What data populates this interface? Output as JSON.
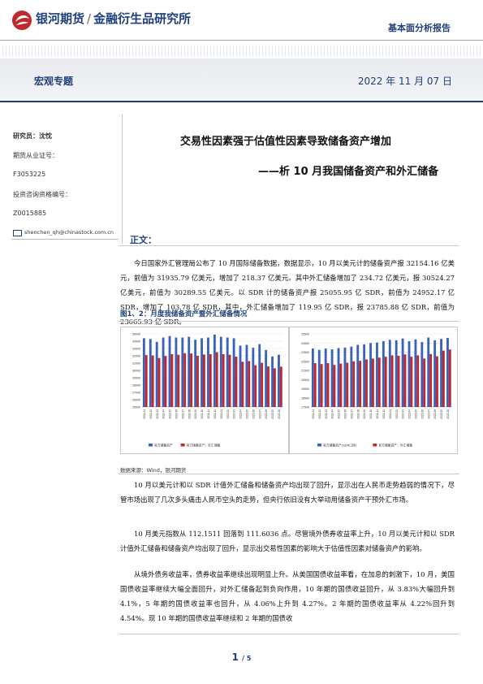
{
  "header": {
    "brand": "银河期货",
    "institute": "金融衍生品研究所",
    "report_type": "基本面分析报告",
    "colors": {
      "brand_blue": "#1f3f7a",
      "brand_red": "#c0282d"
    }
  },
  "band": {
    "category": "宏观专题",
    "date": "2022 年 11 月 07 日"
  },
  "sidebar": {
    "researcher": "研究员：沈忱",
    "license_label": "期货从业证号：",
    "license_no": "F3053225",
    "advisory_label": "投资咨询资格编号：",
    "advisory_no": "Z0015885",
    "email": "shenchen_qh@chinastock.com.cn",
    "email_icon": "mail-icon"
  },
  "title": {
    "main": "交易性因素强于估值性因素导致储备资产增加",
    "sub": "——析 10 月我国储备资产和外汇储备"
  },
  "section": {
    "heading": "正文："
  },
  "paragraphs": {
    "p1": "今日国家外汇管理局公布了 10 月国际储备数据，数据显示，10 月以美元计的储备资产报 32154.16 亿美元，前值为 31935.79 亿美元，增加了 218.37 亿美元。其中外汇储备增加了 234.72 亿美元，报 30524.27 亿美元，前值为 30289.55 亿美元。以 SDR 计的储备资产报 25055.95 亿 SDR，前值为 24952.17 亿 SDR，增加了 103.78 亿 SDR，其中，外汇储备增加了 119.95 亿 SDR，报 23785.88 亿 SDR，前值为 23665.93 亿 SDR。",
    "p2": "10 月以美元计和以 SDR 计值外汇储备和储备资产均出现了回升，显示出在人民币走势趋弱的情况下，尽管市场出现了几次多头痛击人民币空头的走势，但央行依旧没有大举动用储备资产干预外汇市场。",
    "p3": "10 月美元指数从 112.1511 回落到 111.6036 点。尽管境外债券收益率上升，10 月以美元计和以 SDR 计值外汇储备和储备资产均出现了回升，显示出交易性因素的影响大于估值性因素对储备资产的影响。",
    "p4": "从境外债务收益率，债券收益率继续出现明显上升。从美国国债收益率看，在加息的刺激下，10 月，美国国债收益率继续大幅全面回升，对外汇储备起到负向作用，10 年期的国债收益回升，从 3.83%大幅回升到 4.1%，5 年期的国债收益率也回升，从 4.06%上升到 4.27%。2 年期的国债收益率从 4.22%回升到 4.54%。现 10 年期的国债收益率继续和 2 年期的国债收"
  },
  "figure": {
    "title": "图1、2：月度我储备资产暨外汇储备情况",
    "source": "数据来源：Wind，银河期货"
  },
  "chart_data": [
    {
      "type": "bar",
      "categories": [
        "2021-01",
        "2021-02",
        "2021-03",
        "2021-04",
        "2021-05",
        "2021-06",
        "2021-07",
        "2021-08",
        "2021-09",
        "2021-10",
        "2021-11",
        "2021-12",
        "2022-01",
        "2022-02",
        "2022-03",
        "2022-04",
        "2022-05",
        "2022-06",
        "2022-07",
        "2022-08",
        "2022-09",
        "2022-10"
      ],
      "series": [
        {
          "name": "官方储备资产",
          "color": "#3a62b8",
          "values": [
            34400,
            34300,
            33900,
            34500,
            34700,
            34500,
            34500,
            34600,
            34200,
            34400,
            34500,
            34900,
            34600,
            34500,
            34400,
            33400,
            33500,
            33100,
            33600,
            32800,
            31900,
            32150
          ]
        },
        {
          "name": "官方储备资产：外汇储备",
          "color": "#c0282d",
          "values": [
            32100,
            32050,
            31700,
            31980,
            32220,
            32140,
            32360,
            32320,
            32010,
            32180,
            32220,
            32500,
            32220,
            32140,
            31880,
            31190,
            31280,
            30710,
            31040,
            30550,
            30290,
            30520
          ]
        }
      ],
      "ylim": [
        25000,
        35000
      ],
      "yticks": [
        25000,
        26000,
        27000,
        28000,
        29000,
        30000,
        31000,
        32000,
        33000,
        34000,
        35000
      ],
      "legend": "bottom"
    },
    {
      "type": "bar",
      "categories": [
        "2021-01",
        "2021-02",
        "2021-03",
        "2021-04",
        "2021-05",
        "2021-06",
        "2021-07",
        "2021-08",
        "2021-09",
        "2021-10",
        "2021-11",
        "2021-12",
        "2022-01",
        "2022-02",
        "2022-03",
        "2022-04",
        "2022-05",
        "2022-06",
        "2022-07",
        "2022-08",
        "2022-09",
        "2022-10"
      ],
      "series": [
        {
          "name": "官方储备资产(SDR口径)",
          "color": "#3a62b8",
          "values": [
            23900,
            23750,
            23900,
            23800,
            23950,
            24000,
            24100,
            24300,
            24350,
            24500,
            24550,
            24700,
            24850,
            24800,
            25000,
            24700,
            24900,
            24600,
            25100,
            24800,
            24950,
            25060
          ]
        },
        {
          "name": "官方储备资产：外汇储备",
          "color": "#c0282d",
          "values": [
            22300,
            22200,
            22300,
            22100,
            22250,
            22350,
            22500,
            22550,
            22700,
            22800,
            22900,
            23000,
            23150,
            23100,
            23250,
            23000,
            23150,
            22800,
            23300,
            23050,
            23670,
            23790
          ]
        }
      ],
      "ylim": [
        17500,
        25500
      ],
      "yticks": [
        17500,
        18500,
        19500,
        20500,
        21500,
        22500,
        23500,
        24500,
        25500
      ],
      "legend": "bottom"
    }
  ],
  "footer": {
    "page": "1",
    "total": "/ 5"
  }
}
